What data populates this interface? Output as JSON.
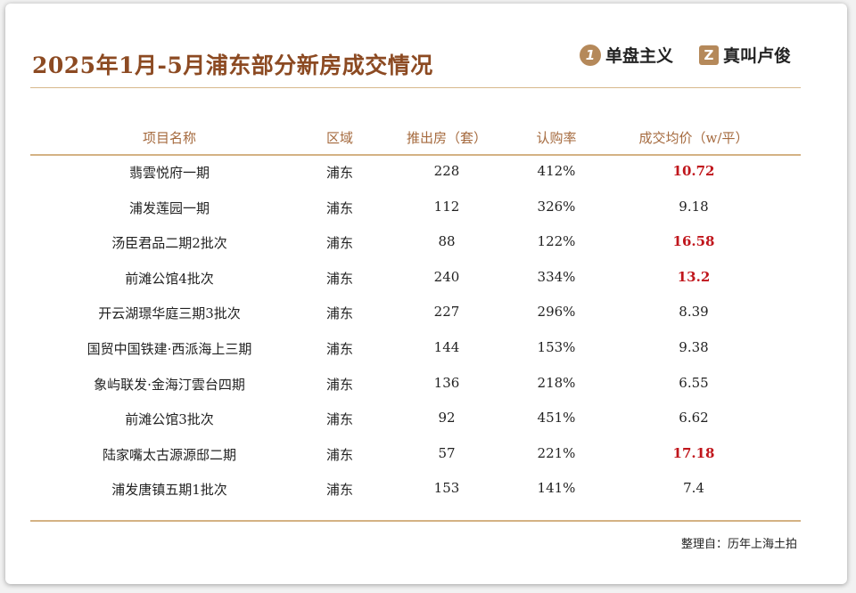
{
  "header": {
    "title": "2025年1月-5月浦东部分新房成交情况",
    "logos": [
      {
        "mark": "1",
        "text": "单盘主义"
      },
      {
        "mark": "Z",
        "text": "真叫卢俊"
      }
    ]
  },
  "table": {
    "columns": [
      "项目名称",
      "区域",
      "推出房（套）",
      "认购率",
      "成交均价（w/平）"
    ],
    "rows": [
      [
        "翡雲悦府一期",
        "浦东",
        "228",
        "412%",
        "10.72"
      ],
      [
        "浦发莲园一期",
        "浦东",
        "112",
        "326%",
        "9.18"
      ],
      [
        "汤臣君品二期2批次",
        "浦东",
        "88",
        "122%",
        "16.58"
      ],
      [
        "前滩公馆4批次",
        "浦东",
        "240",
        "334%",
        "13.2"
      ],
      [
        "开云湖璟华庭三期3批次",
        "浦东",
        "227",
        "296%",
        "8.39"
      ],
      [
        "国贸中国铁建·西派海上三期",
        "浦东",
        "144",
        "153%",
        "9.38"
      ],
      [
        "象屿联发·金海汀雲台四期",
        "浦东",
        "136",
        "218%",
        "6.55"
      ],
      [
        "前滩公馆3批次",
        "浦东",
        "92",
        "451%",
        "6.62"
      ],
      [
        "陆家嘴太古源源邸二期",
        "浦东",
        "57",
        "221%",
        "17.18"
      ],
      [
        "浦发唐镇五期1批次",
        "浦东",
        "153",
        "141%",
        "7.4"
      ]
    ],
    "highlight_rows": [
      0,
      2,
      3,
      8
    ],
    "highlight_color": "#c0161c"
  },
  "footer": {
    "source": "整理自：历年上海土拍"
  }
}
